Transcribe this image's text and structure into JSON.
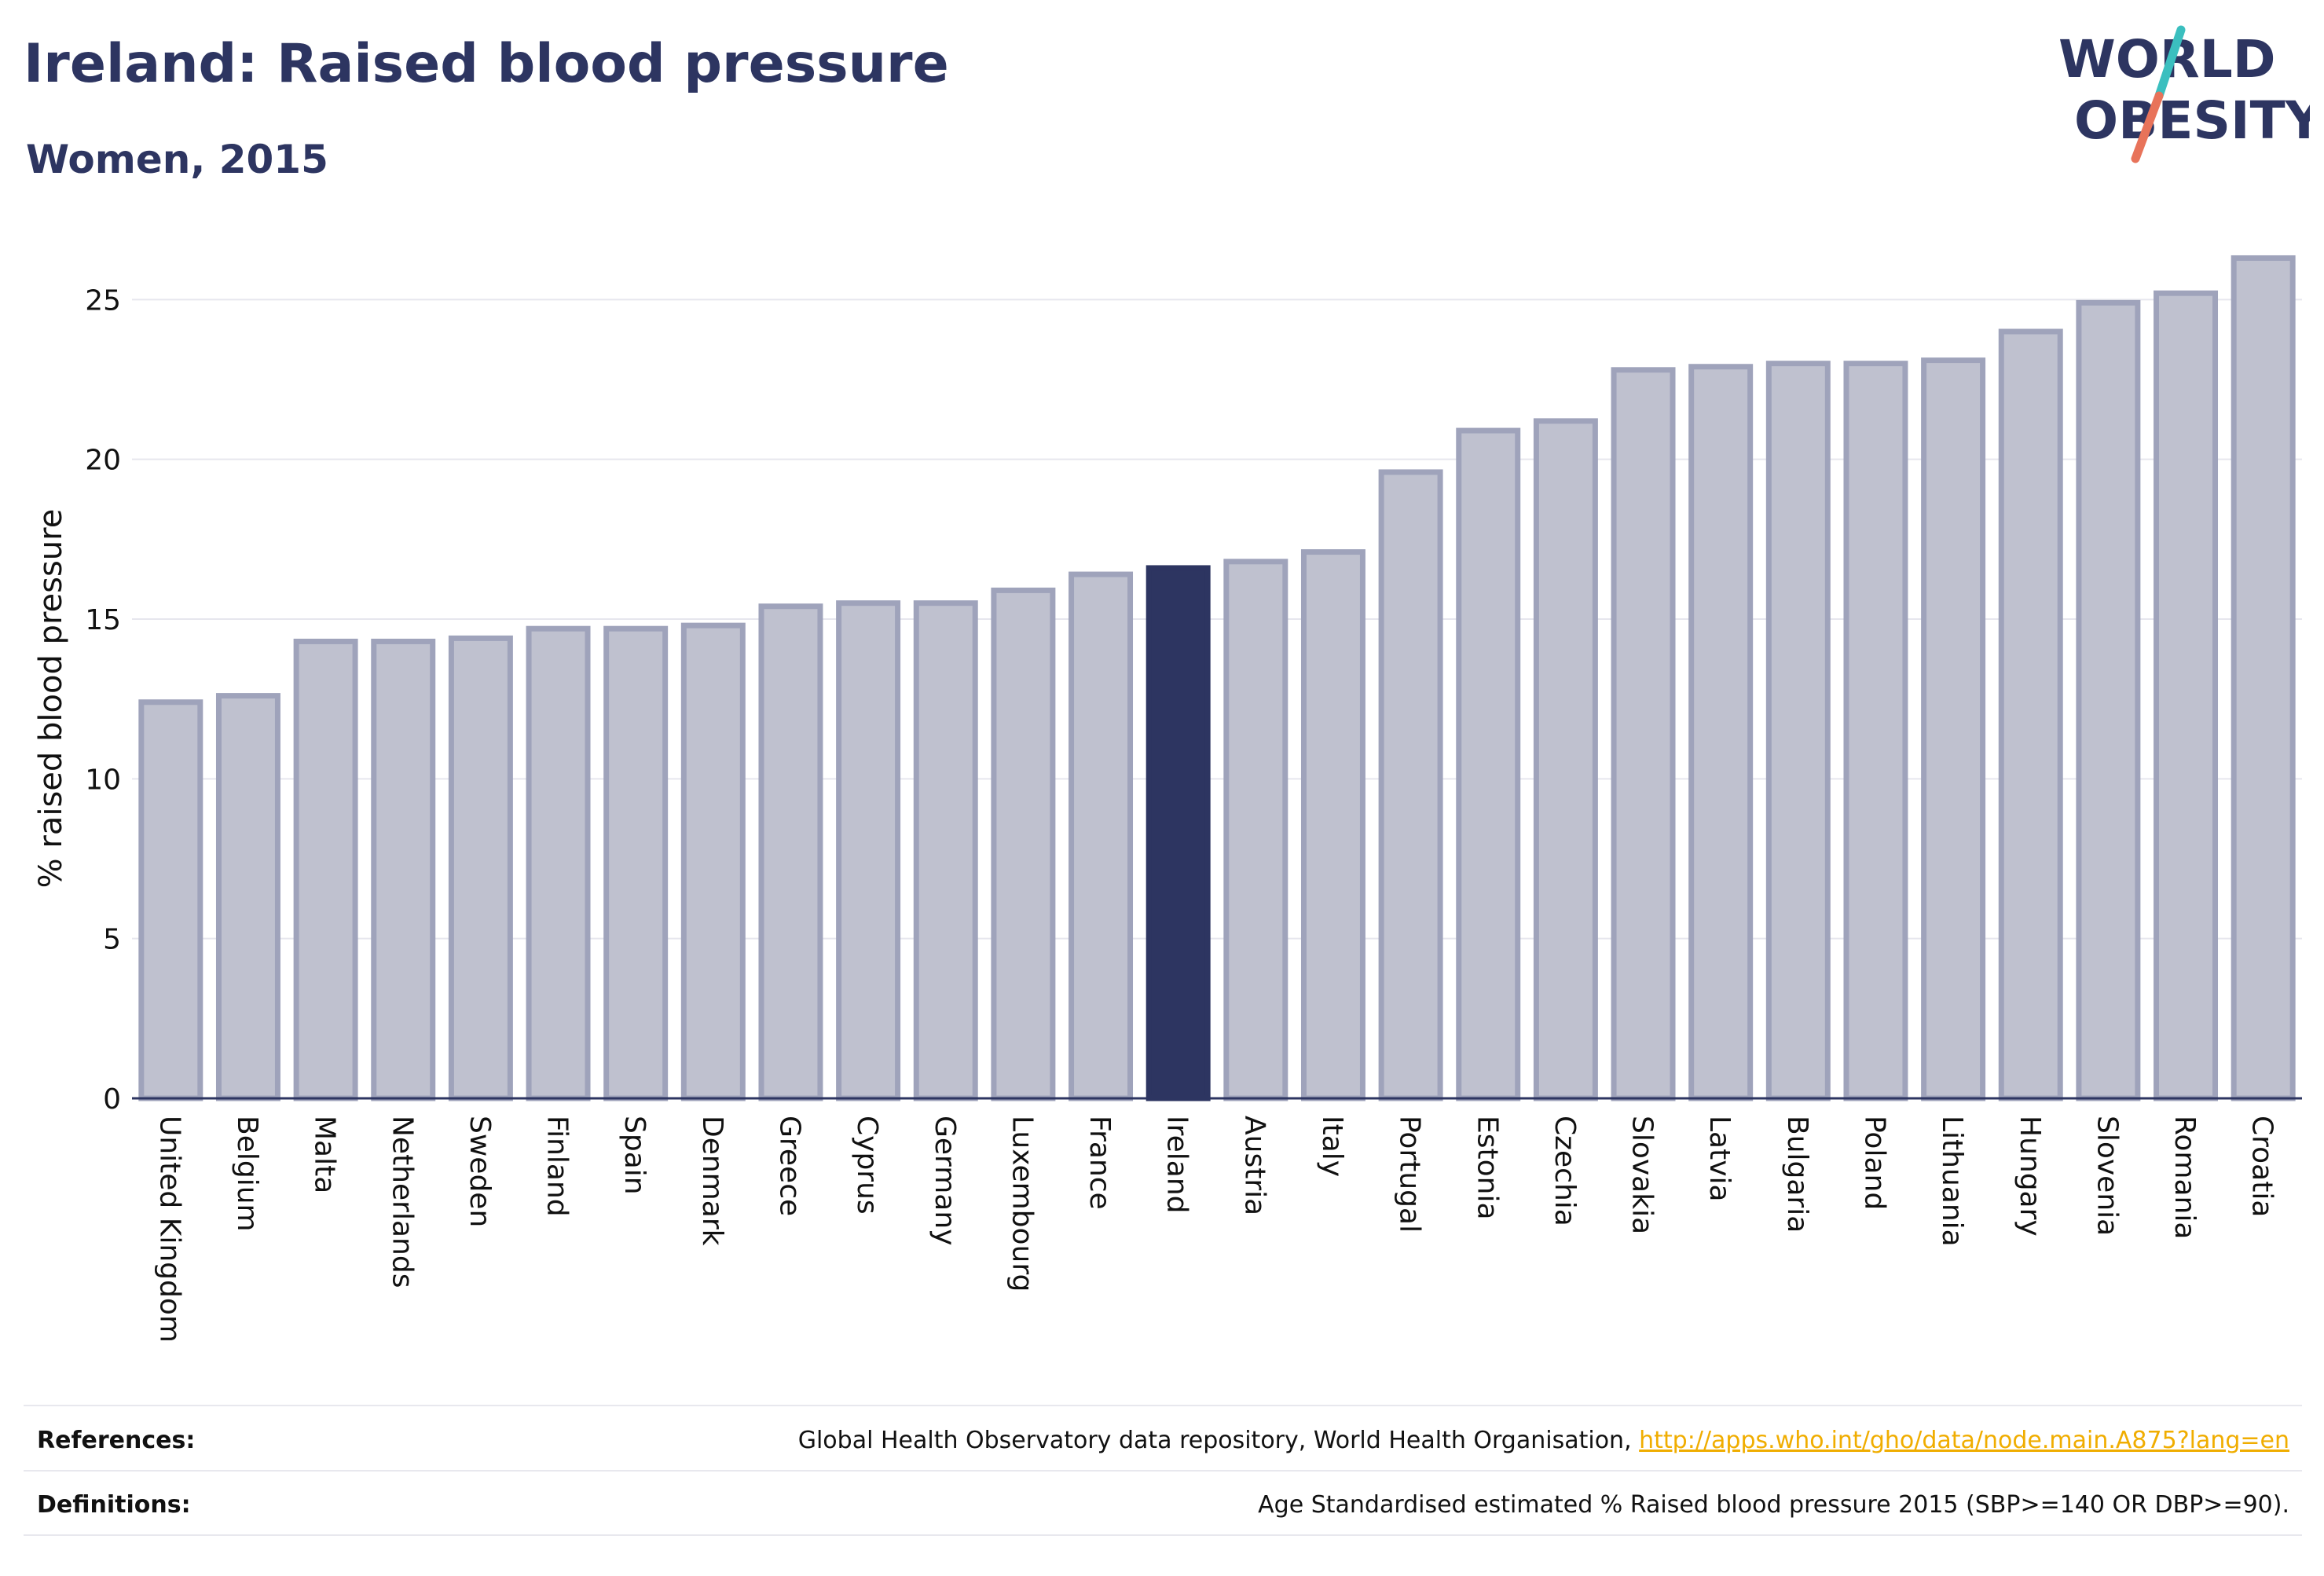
{
  "header": {
    "title": "Ireland: Raised blood pressure",
    "subtitle": "Women, 2015"
  },
  "logo": {
    "line1": "WORLD",
    "line2": "OBESITY",
    "slash_colors": [
      "#3bbfbf",
      "#e8735a"
    ],
    "text_color": "#2d3561"
  },
  "chart_data": {
    "type": "bar",
    "ylabel": "% raised blood pressure",
    "xlabel": "",
    "ylim": [
      0,
      27
    ],
    "yticks": [
      0,
      5,
      10,
      15,
      20,
      25
    ],
    "grid": true,
    "highlight": "Ireland",
    "colors": {
      "bar_fill": "#bfc1cf",
      "bar_stroke": "#9fa3bb",
      "highlight_fill": "#2d3561",
      "grid": "#e6e6ee",
      "axis": "#2d3561"
    },
    "categories": [
      "United Kingdom",
      "Belgium",
      "Malta",
      "Netherlands",
      "Sweden",
      "Finland",
      "Spain",
      "Denmark",
      "Greece",
      "Cyprus",
      "Germany",
      "Luxembourg",
      "France",
      "Ireland",
      "Austria",
      "Italy",
      "Portugal",
      "Estonia",
      "Czechia",
      "Slovakia",
      "Latvia",
      "Bulgaria",
      "Poland",
      "Lithuania",
      "Hungary",
      "Slovenia",
      "Romania",
      "Croatia"
    ],
    "values": [
      12.4,
      12.6,
      14.3,
      14.3,
      14.4,
      14.7,
      14.7,
      14.8,
      15.4,
      15.5,
      15.5,
      15.9,
      16.4,
      16.6,
      16.8,
      17.1,
      19.6,
      20.9,
      21.2,
      22.8,
      22.9,
      23.0,
      23.0,
      23.1,
      24.0,
      24.9,
      25.2,
      26.3
    ]
  },
  "footer": {
    "references_label": "References:",
    "references_text": "Global Health Observatory data repository, World Health Organisation, ",
    "references_link": "http://apps.who.int/gho/data/node.main.A875?lang=en",
    "definitions_label": "Definitions:",
    "definitions_text": "Age Standardised estimated % Raised blood pressure 2015 (SBP>=140 OR DBP>=90)."
  }
}
